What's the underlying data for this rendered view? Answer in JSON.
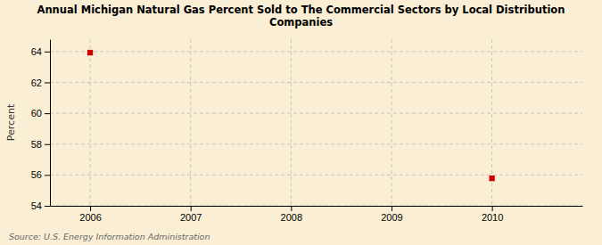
{
  "chart_data": {
    "type": "scatter",
    "title": "Annual Michigan Natural Gas Percent Sold to The Commercial Sectors by Local Distribution\nCompanies",
    "ylabel": "Percent",
    "x": [
      2006,
      2010
    ],
    "values": [
      63.93,
      55.78
    ],
    "color": "#cc0000",
    "marker": "square",
    "xlim": [
      2005.6,
      2010.9
    ],
    "ylim": [
      54,
      64.8
    ],
    "xticks": [
      2006,
      2007,
      2008,
      2009,
      2010
    ],
    "yticks": [
      54,
      56,
      58,
      60,
      62,
      64
    ],
    "grid": true,
    "annotations": [
      "Source: U.S. Energy Information Administration"
    ]
  }
}
